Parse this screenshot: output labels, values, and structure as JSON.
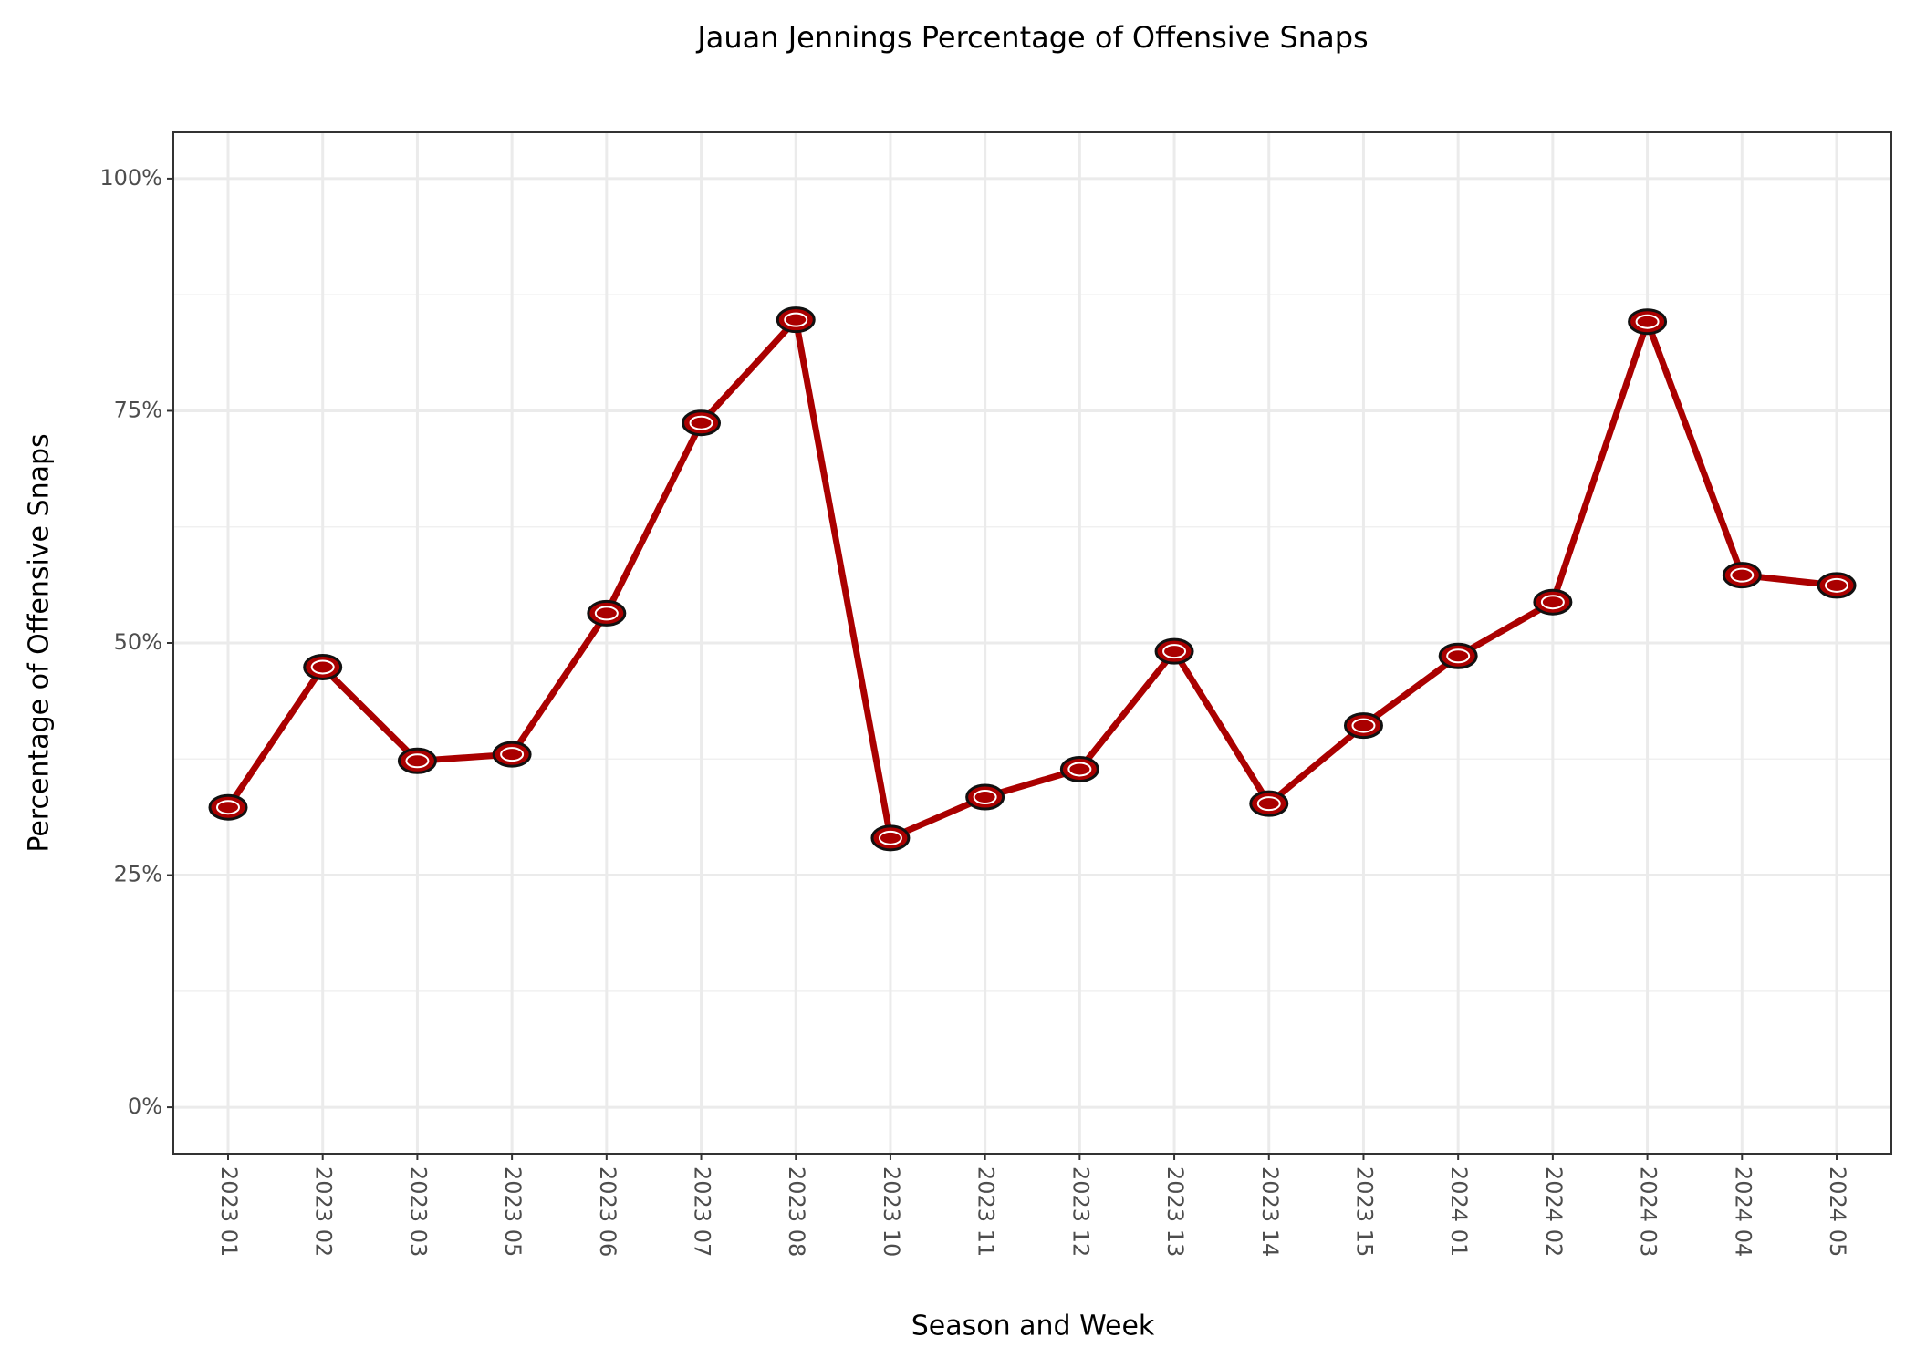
{
  "chart_data": {
    "type": "line",
    "title": "Jauan Jennings Percentage of Offensive Snaps",
    "x_label": "Season and Week",
    "y_label": "Percentage of Offensive Snaps",
    "categories": [
      "2023 01",
      "2023 02",
      "2023 03",
      "2023 05",
      "2023 06",
      "2023 07",
      "2023 08",
      "2023 10",
      "2023 11",
      "2023 12",
      "2023 13",
      "2023 14",
      "2023 15",
      "2024 01",
      "2024 02",
      "2024 03",
      "2024 04",
      "2024 05"
    ],
    "values": [
      32.3,
      47.4,
      37.3,
      38.0,
      53.2,
      73.7,
      84.8,
      29.0,
      33.4,
      36.4,
      49.1,
      32.7,
      41.1,
      48.6,
      54.4,
      84.6,
      57.3,
      56.2
    ],
    "color": "#aa0000",
    "ylim": [
      -5,
      105
    ],
    "yticks": [
      {
        "value": 0,
        "label": "0%"
      },
      {
        "value": 25,
        "label": "25%"
      },
      {
        "value": 50,
        "label": "50%"
      },
      {
        "value": 75,
        "label": "75%"
      },
      {
        "value": 100,
        "label": "100%"
      }
    ],
    "grid": true
  }
}
